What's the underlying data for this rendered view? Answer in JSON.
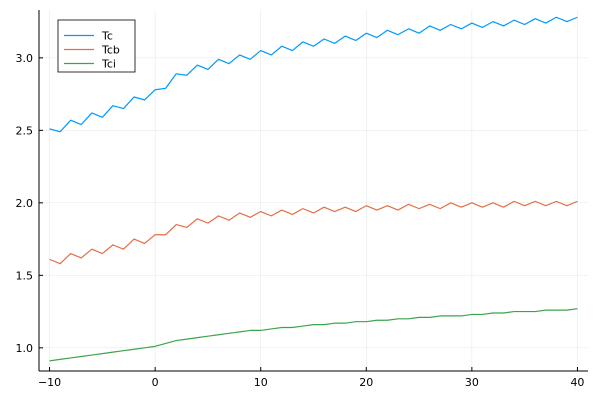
{
  "chart_data": {
    "type": "line",
    "title": "",
    "xlabel": "",
    "ylabel": "",
    "xlim": [
      -11,
      41
    ],
    "ylim": [
      0.84,
      3.33
    ],
    "xticks": [
      -10,
      0,
      10,
      20,
      30,
      40
    ],
    "xtick_labels": [
      "−10",
      "0",
      "10",
      "20",
      "30",
      "40"
    ],
    "yticks": [
      1.0,
      1.5,
      2.0,
      2.5,
      3.0
    ],
    "ytick_labels": [
      "1.0",
      "1.5",
      "2.0",
      "2.5",
      "3.0"
    ],
    "grid": true,
    "legend_position": "top-left",
    "x": [
      -10,
      -9,
      -8,
      -7,
      -6,
      -5,
      -4,
      -3,
      -2,
      -1,
      0,
      1,
      2,
      3,
      4,
      5,
      6,
      7,
      8,
      9,
      10,
      11,
      12,
      13,
      14,
      15,
      16,
      17,
      18,
      19,
      20,
      21,
      22,
      23,
      24,
      25,
      26,
      27,
      28,
      29,
      30,
      31,
      32,
      33,
      34,
      35,
      36,
      37,
      38,
      39,
      40
    ],
    "series": [
      {
        "name": "Tc",
        "color": "#009af9",
        "values": [
          2.51,
          2.49,
          2.57,
          2.54,
          2.62,
          2.59,
          2.67,
          2.65,
          2.73,
          2.71,
          2.78,
          2.79,
          2.89,
          2.88,
          2.95,
          2.92,
          2.99,
          2.96,
          3.02,
          2.99,
          3.05,
          3.02,
          3.08,
          3.05,
          3.11,
          3.08,
          3.13,
          3.1,
          3.15,
          3.12,
          3.17,
          3.14,
          3.19,
          3.16,
          3.2,
          3.17,
          3.22,
          3.19,
          3.23,
          3.2,
          3.24,
          3.21,
          3.25,
          3.22,
          3.26,
          3.23,
          3.27,
          3.24,
          3.28,
          3.25,
          3.28
        ]
      },
      {
        "name": "Tcb",
        "color": "#e26f46",
        "values": [
          1.61,
          1.58,
          1.65,
          1.62,
          1.68,
          1.65,
          1.71,
          1.68,
          1.75,
          1.72,
          1.78,
          1.78,
          1.85,
          1.83,
          1.89,
          1.86,
          1.91,
          1.88,
          1.93,
          1.9,
          1.94,
          1.91,
          1.95,
          1.92,
          1.96,
          1.93,
          1.97,
          1.94,
          1.97,
          1.94,
          1.98,
          1.95,
          1.98,
          1.95,
          1.99,
          1.96,
          1.99,
          1.96,
          2.0,
          1.97,
          2.0,
          1.97,
          2.0,
          1.97,
          2.01,
          1.98,
          2.01,
          1.98,
          2.01,
          1.98,
          2.01
        ]
      },
      {
        "name": "Tci",
        "color": "#3da44d",
        "values": [
          0.91,
          0.92,
          0.93,
          0.94,
          0.95,
          0.96,
          0.97,
          0.98,
          0.99,
          1.0,
          1.01,
          1.03,
          1.05,
          1.06,
          1.07,
          1.08,
          1.09,
          1.1,
          1.11,
          1.12,
          1.12,
          1.13,
          1.14,
          1.14,
          1.15,
          1.16,
          1.16,
          1.17,
          1.17,
          1.18,
          1.18,
          1.19,
          1.19,
          1.2,
          1.2,
          1.21,
          1.21,
          1.22,
          1.22,
          1.22,
          1.23,
          1.23,
          1.24,
          1.24,
          1.25,
          1.25,
          1.25,
          1.26,
          1.26,
          1.26,
          1.27
        ]
      }
    ]
  }
}
